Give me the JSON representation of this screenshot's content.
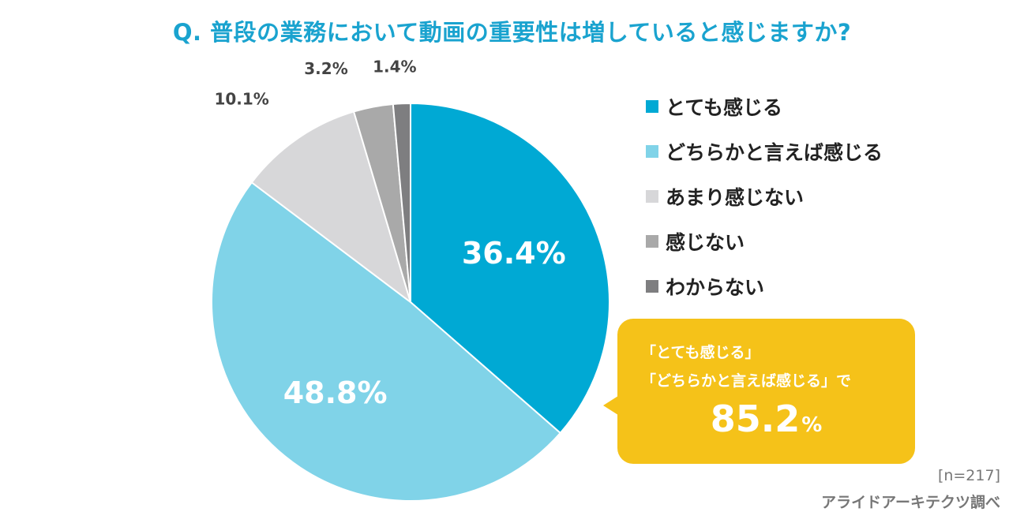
{
  "chart_data": {
    "type": "pie",
    "title": "Q. 普段の業務において動画の重要性は増していると感じますか?",
    "slices": [
      {
        "label": "とても感じる",
        "value": 36.4,
        "value_label": "36.4%",
        "color": "#00a9d4"
      },
      {
        "label": "どちらかと言えば感じる",
        "value": 48.8,
        "value_label": "48.8%",
        "color": "#80d3e8"
      },
      {
        "label": "あまり感じない",
        "value": 10.1,
        "value_label": "10.1%",
        "color": "#d7d7d9"
      },
      {
        "label": "感じない",
        "value": 3.2,
        "value_label": "3.2%",
        "color": "#a9a9a9"
      },
      {
        "label": "わからない",
        "value": 1.4,
        "value_label": "1.4%",
        "color": "#7e7e80"
      }
    ],
    "legend_position": "right",
    "start": "12 o'clock, clockwise"
  },
  "callout": {
    "line1": "「とても感じる」",
    "line2": "「どちらかと言えば感じる」で",
    "value": "85.2",
    "unit": "%",
    "color": "#f5c219"
  },
  "notes": {
    "sample": "[n=217]",
    "source": "アライドアーキテクツ調べ"
  }
}
